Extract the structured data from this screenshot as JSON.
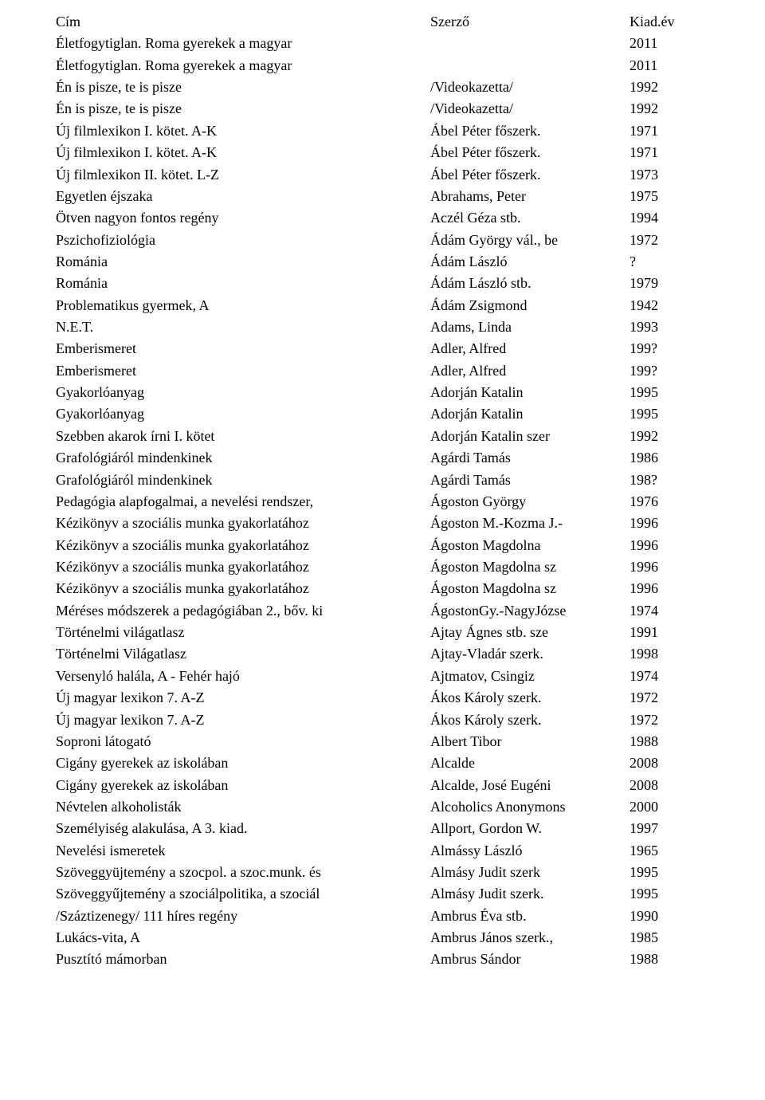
{
  "header": {
    "title_col": "Cím",
    "author_col": "Szerző",
    "year_col": "Kiad.év"
  },
  "rows": [
    {
      "title": "Életfogytiglan. Roma gyerekek a magyar",
      "author": "",
      "year": "2011"
    },
    {
      "title": "Életfogytiglan. Roma gyerekek a magyar",
      "author": "",
      "year": "2011"
    },
    {
      "title": "Én is pisze, te is pisze",
      "author": "/Videokazetta/",
      "year": "1992"
    },
    {
      "title": "Én is pisze, te is pisze",
      "author": "/Videokazetta/",
      "year": "1992"
    },
    {
      "title": "Új filmlexikon I. kötet. A-K",
      "author": "Ábel Péter főszerk.",
      "year": "1971"
    },
    {
      "title": "Új filmlexikon I. kötet. A-K",
      "author": "Ábel Péter főszerk.",
      "year": "1971"
    },
    {
      "title": "Új filmlexikon II. kötet. L-Z",
      "author": "Ábel Péter főszerk.",
      "year": "1973"
    },
    {
      "title": "Egyetlen éjszaka",
      "author": "Abrahams, Peter",
      "year": "1975"
    },
    {
      "title": "Ötven nagyon fontos regény",
      "author": "Aczél Géza stb.",
      "year": "1994"
    },
    {
      "title": "Pszichofiziológia",
      "author": "Ádám György vál., be",
      "year": "1972"
    },
    {
      "title": "Románia",
      "author": "Ádám László",
      "year": "?"
    },
    {
      "title": "Románia",
      "author": "Ádám László stb.",
      "year": "1979"
    },
    {
      "title": "Problematikus gyermek, A",
      "author": "Ádám Zsigmond",
      "year": "1942"
    },
    {
      "title": "N.E.T.",
      "author": "Adams, Linda",
      "year": "1993"
    },
    {
      "title": "Emberismeret",
      "author": "Adler, Alfred",
      "year": "199?"
    },
    {
      "title": "Emberismeret",
      "author": "Adler, Alfred",
      "year": "199?"
    },
    {
      "title": "Gyakorlóanyag",
      "author": "Adorján Katalin",
      "year": "1995"
    },
    {
      "title": "Gyakorlóanyag",
      "author": "Adorján Katalin",
      "year": "1995"
    },
    {
      "title": "Szebben akarok írni I. kötet",
      "author": "Adorján Katalin szer",
      "year": "1992"
    },
    {
      "title": "Grafológiáról mindenkinek",
      "author": "Agárdi Tamás",
      "year": "1986"
    },
    {
      "title": "Grafológiáról mindenkinek",
      "author": "Agárdi Tamás",
      "year": "198?"
    },
    {
      "title": "Pedagógia alapfogalmai, a nevelési rendszer,",
      "author": "Ágoston György",
      "year": "1976"
    },
    {
      "title": "Kézikönyv a szociális munka gyakorlatához",
      "author": "Ágoston M.-Kozma J.-",
      "year": "1996"
    },
    {
      "title": "Kézikönyv a szociális munka gyakorlatához",
      "author": "Ágoston Magdolna",
      "year": "1996"
    },
    {
      "title": "Kézikönyv a szociális munka gyakorlatához",
      "author": "Ágoston Magdolna  sz",
      "year": "1996"
    },
    {
      "title": "Kézikönyv a szociális munka gyakorlatához",
      "author": "Ágoston Magdolna  sz",
      "year": "1996"
    },
    {
      "title": "Méréses módszerek a pedagógiában  2., bőv. ki",
      "author": "ÁgostonGy.-NagyJózse",
      "year": "1974"
    },
    {
      "title": "Történelmi világatlasz",
      "author": "Ajtay Ágnes stb. sze",
      "year": "1991"
    },
    {
      "title": "Történelmi Világatlasz",
      "author": "Ajtay-Vladár szerk.",
      "year": "1998"
    },
    {
      "title": "Versenyló halála, A - Fehér hajó",
      "author": "Ajtmatov, Csingiz",
      "year": "1974"
    },
    {
      "title": "Új magyar lexikon 7.  A-Z",
      "author": "Ákos Károly szerk.",
      "year": "1972"
    },
    {
      "title": "Új magyar lexikon 7.  A-Z",
      "author": "Ákos Károly szerk.",
      "year": "1972"
    },
    {
      "title": "Soproni látogató",
      "author": "Albert Tibor",
      "year": "1988"
    },
    {
      "title": "Cigány gyerekek az iskolában",
      "author": "Alcalde",
      "year": "2008"
    },
    {
      "title": "Cigány gyerekek az iskolában",
      "author": "Alcalde, José Eugéni",
      "year": "2008"
    },
    {
      "title": "Névtelen alkoholisták",
      "author": "Alcoholics Anonymons",
      "year": "2000"
    },
    {
      "title": "Személyiség alakulása, A  3. kiad.",
      "author": "Allport, Gordon W.",
      "year": "1997"
    },
    {
      "title": "Nevelési ismeretek",
      "author": "Almássy László",
      "year": "1965"
    },
    {
      "title": "Szöveggyüjtemény a szocpol. a szoc.munk. és",
      "author": "Almásy Judit  szerk",
      "year": "1995"
    },
    {
      "title": "Szöveggyűjtemény a szociálpolitika, a szociál",
      "author": "Almásy Judit szerk.",
      "year": "1995"
    },
    {
      "title": "/Száztizenegy/ 111 híres regény",
      "author": "Ambrus Éva stb.",
      "year": "1990"
    },
    {
      "title": "Lukács-vita, A",
      "author": "Ambrus János szerk.,",
      "year": "1985"
    },
    {
      "title": "Pusztító mámorban",
      "author": "Ambrus Sándor",
      "year": "1988"
    }
  ]
}
